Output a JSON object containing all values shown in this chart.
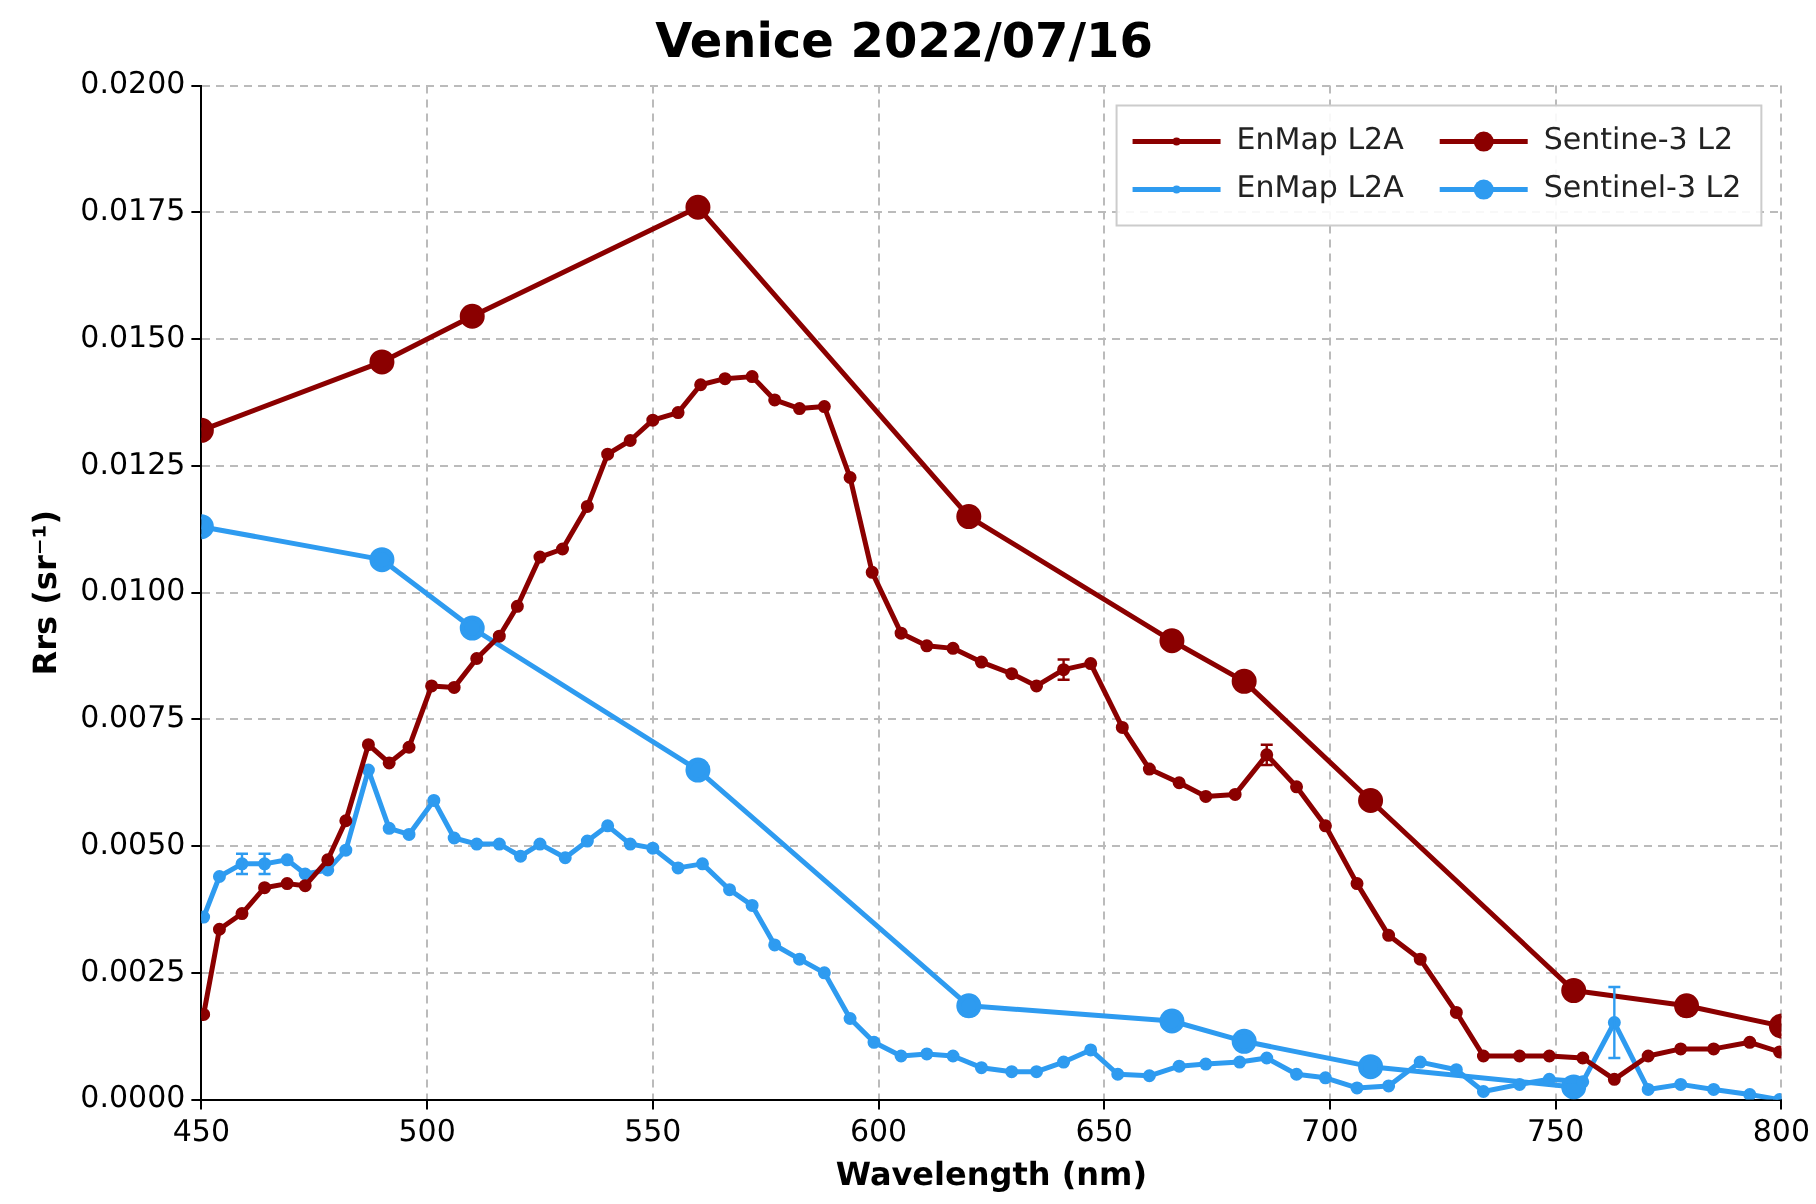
{
  "chart_data": {
    "type": "line",
    "title": "Venice 2022/07/16",
    "xlabel": "Wavelength (nm)",
    "ylabel": "Rrs (sr⁻¹)",
    "xlim": [
      450,
      800
    ],
    "xticks": [
      450,
      500,
      550,
      600,
      650,
      700,
      750,
      800
    ],
    "ylim": [
      0,
      0.02
    ],
    "yticks": [
      {
        "value": 0,
        "label": "0.0000"
      },
      {
        "value": 0.0025,
        "label": "0.0025"
      },
      {
        "value": 0.005,
        "label": "0.0050"
      },
      {
        "value": 0.0075,
        "label": "0.0075"
      },
      {
        "value": 0.01,
        "label": "0.0100"
      },
      {
        "value": 0.0125,
        "label": "0.0125"
      },
      {
        "value": 0.015,
        "label": "0.0150"
      },
      {
        "value": 0.0175,
        "label": "0.0175"
      },
      {
        "value": 0.02,
        "label": "0.0200"
      }
    ],
    "grid": true,
    "legend": "top right",
    "marker": "circle",
    "line_style": "solid",
    "series": [
      {
        "name": "EnMap L2A",
        "color": "#8b0000",
        "x": [
          450.5,
          454,
          459,
          464,
          469,
          473,
          478,
          482,
          487,
          491.6,
          496,
          501,
          506,
          511,
          516,
          520,
          525,
          530,
          535.5,
          540,
          545,
          550,
          555.6,
          560.6,
          566,
          572,
          577,
          582.5,
          588,
          593.7,
          598.6,
          605,
          610.7,
          616.5,
          622.8,
          629.5,
          635,
          641,
          647,
          654,
          660,
          666.6,
          672.5,
          679,
          686,
          692.6,
          699,
          706,
          713,
          720,
          728,
          734,
          742,
          748.6,
          756,
          763,
          770.5,
          777.7,
          785,
          793,
          799.6
        ],
        "values": [
          0.00168,
          0.00336,
          0.00367,
          0.00418,
          0.00426,
          0.00422,
          0.00473,
          0.0055,
          0.007,
          0.00664,
          0.00695,
          0.00816,
          0.00813,
          0.0087,
          0.00914,
          0.00973,
          0.0107,
          0.01086,
          0.0117,
          0.01273,
          0.013,
          0.0134,
          0.01355,
          0.0141,
          0.01422,
          0.01426,
          0.0138,
          0.01363,
          0.01367,
          0.01227,
          0.0104,
          0.0092,
          0.00895,
          0.0089,
          0.00863,
          0.0084,
          0.00816,
          0.00848,
          0.0086,
          0.00734,
          0.00652,
          0.00625,
          0.00598,
          0.00602,
          0.0068,
          0.00617,
          0.0054,
          0.00426,
          0.00324,
          0.00277,
          0.00172,
          0.00086,
          0.00086,
          0.00086,
          0.00082,
          0.0004,
          0.00086,
          0.001,
          0.001,
          0.00113,
          0.00094
        ],
        "errors": [
          null,
          null,
          null,
          null,
          null,
          null,
          null,
          null,
          null,
          null,
          null,
          null,
          null,
          null,
          null,
          null,
          null,
          null,
          null,
          null,
          null,
          null,
          null,
          null,
          null,
          null,
          null,
          null,
          null,
          null,
          null,
          null,
          null,
          null,
          null,
          null,
          null,
          0.0002,
          null,
          null,
          null,
          null,
          null,
          null,
          0.0002,
          null,
          null,
          null,
          null,
          null,
          null,
          null,
          null,
          null,
          null,
          null,
          null,
          null,
          null,
          null,
          null
        ]
      },
      {
        "name": "EnMap L2A",
        "color": "#2e9bf0",
        "x": [
          450.5,
          454,
          459,
          464,
          469,
          473,
          478,
          482,
          487,
          491.6,
          496,
          501.5,
          506,
          511,
          516,
          520.7,
          525,
          530.6,
          535.5,
          540,
          545,
          550,
          555.6,
          561,
          567,
          572,
          577,
          582.5,
          588,
          593.7,
          599,
          605,
          610.7,
          616.5,
          622.8,
          629.5,
          635,
          641,
          647,
          653,
          660,
          666.6,
          672.5,
          680,
          686,
          692.6,
          699,
          706,
          713,
          720,
          728,
          734,
          742,
          748.6,
          756,
          763,
          770.5,
          777.7,
          785,
          793,
          799.6
        ],
        "values": [
          0.0036,
          0.0044,
          0.00465,
          0.00465,
          0.00473,
          0.00445,
          0.00453,
          0.00492,
          0.0065,
          0.00535,
          0.00523,
          0.0059,
          0.00516,
          0.00504,
          0.00504,
          0.0048,
          0.00504,
          0.00477,
          0.0051,
          0.0054,
          0.00504,
          0.00496,
          0.00457,
          0.00465,
          0.00414,
          0.00383,
          0.00305,
          0.00277,
          0.0025,
          0.0016,
          0.00113,
          0.00086,
          0.0009,
          0.00086,
          0.00063,
          0.00055,
          0.00055,
          0.00074,
          0.00098,
          0.0005,
          0.00047,
          0.00066,
          0.0007,
          0.00074,
          0.00082,
          0.0005,
          0.00043,
          0.00023,
          0.00027,
          0.00074,
          0.00059,
          0.00016,
          0.0003,
          0.0004,
          0.00035,
          0.00152,
          0.0002,
          0.0003,
          0.0002,
          0.0001,
          0.0
        ],
        "errors": [
          null,
          null,
          0.0002,
          0.0002,
          null,
          null,
          null,
          null,
          null,
          null,
          null,
          null,
          null,
          null,
          null,
          null,
          null,
          null,
          null,
          null,
          null,
          null,
          null,
          null,
          null,
          null,
          null,
          null,
          null,
          null,
          null,
          null,
          null,
          null,
          null,
          null,
          null,
          null,
          null,
          null,
          null,
          null,
          null,
          null,
          null,
          null,
          null,
          null,
          null,
          null,
          null,
          null,
          null,
          null,
          null,
          0.0007,
          null,
          null,
          null,
          null,
          null
        ]
      },
      {
        "name": "Sentine-3 L2",
        "color": "#8b0000",
        "x": [
          450,
          490,
          510,
          560,
          620,
          665,
          681,
          709,
          754,
          779,
          800
        ],
        "values": [
          0.0132,
          0.01455,
          0.01545,
          0.0176,
          0.0115,
          0.00905,
          0.00825,
          0.0059,
          0.00215,
          0.00185,
          0.00145
        ]
      },
      {
        "name": "Sentinel-3 L2",
        "color": "#2e9bf0",
        "x": [
          450,
          490,
          510,
          560,
          620,
          665,
          681,
          709,
          754
        ],
        "values": [
          0.0113,
          0.01065,
          0.0093,
          0.0065,
          0.00185,
          0.00155,
          0.00115,
          0.00065,
          0.00025
        ]
      }
    ]
  }
}
